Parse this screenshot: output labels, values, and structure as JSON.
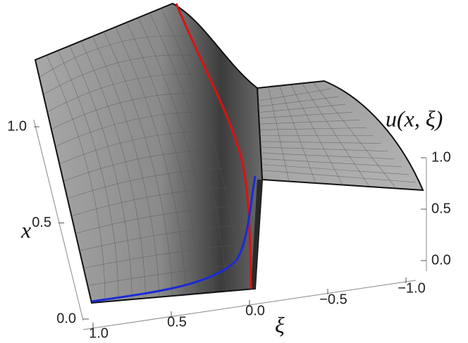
{
  "chart_data": {
    "type": "surface",
    "x_label": "x",
    "xi_label": "ξ",
    "z_label": "u(x, ξ)",
    "xticks": [
      {
        "value": 0,
        "label": "0.0"
      },
      {
        "value": 0.5,
        "label": "0.5"
      },
      {
        "value": 1,
        "label": "1.0"
      }
    ],
    "xiticks": [
      {
        "value": 1,
        "label": "1.0"
      },
      {
        "value": 0.5,
        "label": "0.5"
      },
      {
        "value": 0,
        "label": "0.0"
      },
      {
        "value": -0.5,
        "label": "−0.5"
      },
      {
        "value": -1,
        "label": "−1.0"
      }
    ],
    "zticks": [
      {
        "value": 0,
        "label": "0.0"
      },
      {
        "value": 0.5,
        "label": "0.5"
      },
      {
        "value": 1,
        "label": "1.0"
      }
    ]
  }
}
